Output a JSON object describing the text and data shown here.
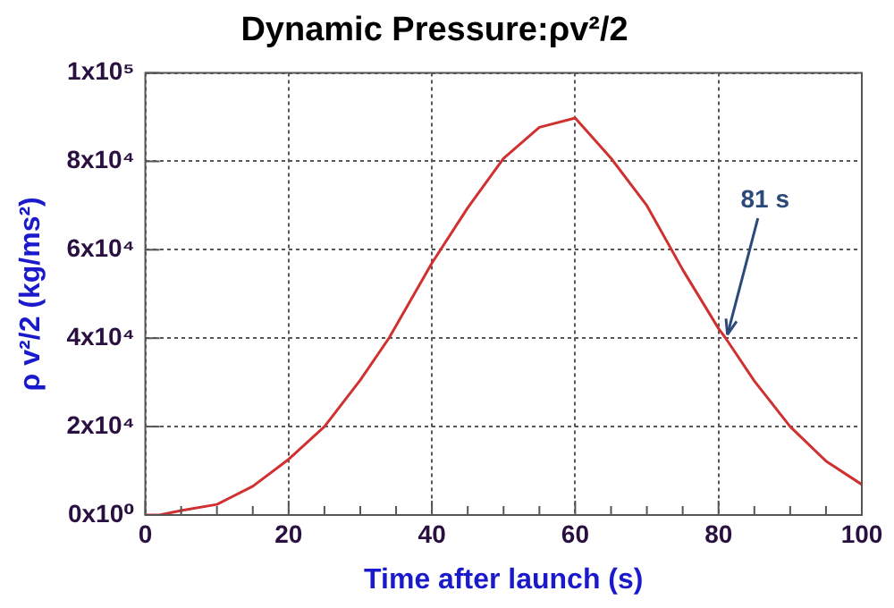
{
  "chart_data": {
    "type": "line",
    "title": "Dynamic Pressure:ρv²/2",
    "xlabel": "Time after launch (s)",
    "ylabel": "ρ v²/2 (kg/ms²)",
    "series": [
      {
        "color": "#d03030",
        "x": [
          0,
          2,
          5,
          10,
          15,
          20,
          25,
          30,
          34,
          40,
          45,
          50,
          55,
          60,
          65,
          70,
          75,
          80,
          81,
          85,
          90,
          95,
          100
        ],
        "values": [
          0,
          0,
          1000,
          2400,
          6500,
          12600,
          20000,
          30500,
          40000,
          57000,
          69500,
          80700,
          87700,
          89800,
          80700,
          70000,
          55500,
          42200,
          40000,
          30300,
          20000,
          12200,
          6900
        ]
      }
    ],
    "xlim": [
      0,
      100
    ],
    "xticks": [
      0,
      {
        "value": 5,
        "label": null
      },
      20,
      {
        "value": 10,
        "label": null
      },
      {
        "value": 15,
        "label": null
      },
      {
        "value": 25,
        "label": null
      },
      {
        "value": 30,
        "label": null
      },
      {
        "value": 35,
        "label": null
      },
      40,
      {
        "value": 45,
        "label": null
      },
      {
        "value": 50,
        "label": null
      },
      {
        "value": 55,
        "label": null
      },
      60,
      {
        "value": 65,
        "label": null
      },
      {
        "value": 70,
        "label": null
      },
      {
        "value": 75,
        "label": null
      },
      80,
      {
        "value": 85,
        "label": null
      },
      {
        "value": 90,
        "label": null
      },
      {
        "value": 95,
        "label": null
      },
      100
    ],
    "ylim": [
      0,
      100000
    ],
    "yticks": [
      {
        "value": 0,
        "label": "0x10⁰"
      },
      {
        "value": 20000,
        "label": "2x10⁴"
      },
      {
        "value": 40000,
        "label": "4x10⁴"
      },
      {
        "value": 60000,
        "label": "6x10⁴"
      },
      {
        "value": 80000,
        "label": "8x10⁴"
      },
      {
        "value": 100000,
        "label": "1x10⁵"
      }
    ],
    "grid": true,
    "line_style": "solid",
    "marker": "none",
    "annotations": [
      {
        "text": "81 s",
        "x": 81,
        "y": 40000
      }
    ]
  }
}
